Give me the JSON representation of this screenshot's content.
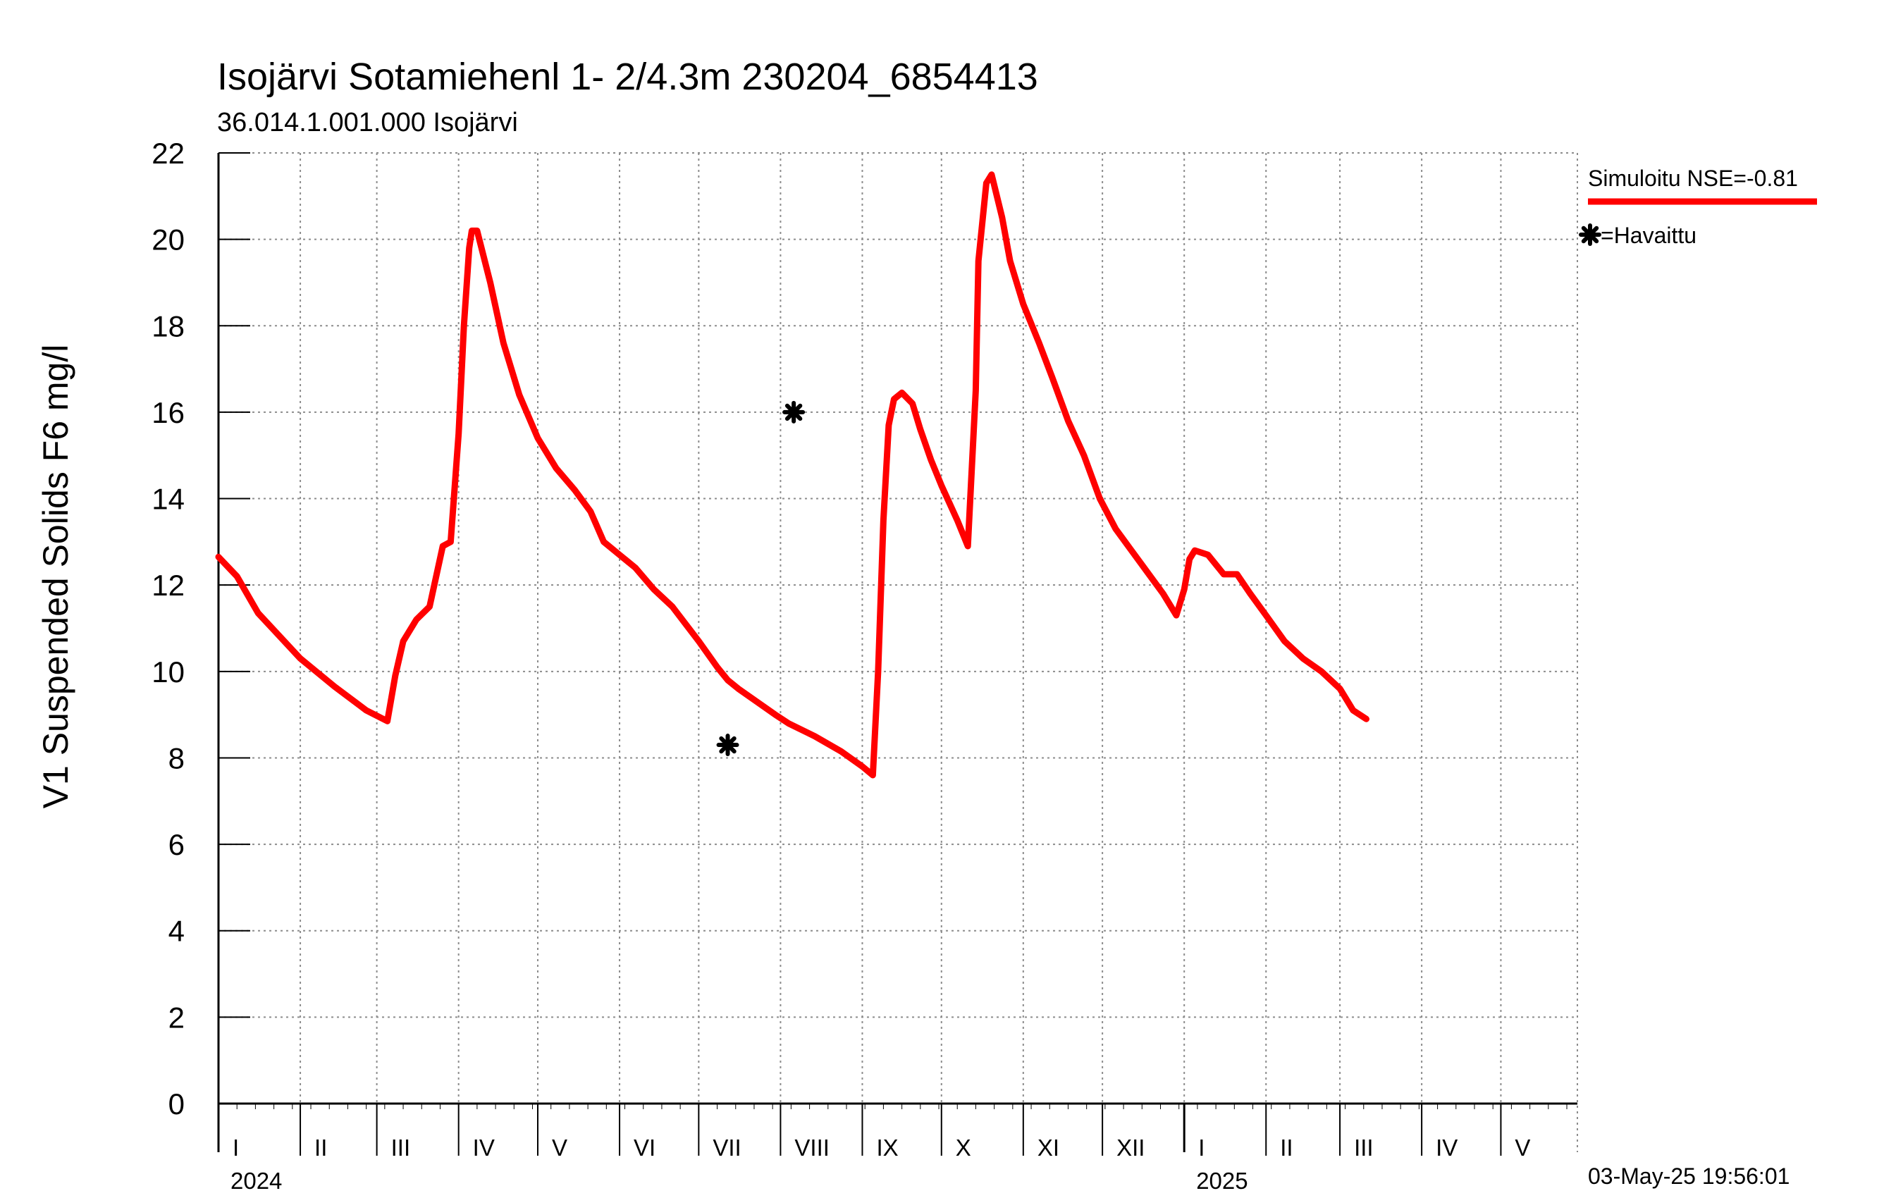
{
  "chart_data": {
    "type": "line",
    "title": "Isojärvi Sotamiehenl 1- 2/4.3m  230204_6854413",
    "subtitle": "36.014.1.001.000 Isojärvi",
    "ylabel": "V1 Suspended Solids F6 mg/l",
    "xlabel": "",
    "ylim": [
      0,
      22
    ],
    "yticks": [
      "0",
      "2",
      "4",
      "6",
      "8",
      "10",
      "12",
      "14",
      "16",
      "18",
      "20",
      "22"
    ],
    "x_unit": "day index from 1 Jan 2024",
    "xlim": [
      0,
      515
    ],
    "grid": true,
    "month_labels": [
      {
        "label": "I",
        "day": 0
      },
      {
        "label": "II",
        "day": 31
      },
      {
        "label": "III",
        "day": 60
      },
      {
        "label": "IV",
        "day": 91
      },
      {
        "label": "V",
        "day": 121
      },
      {
        "label": "VI",
        "day": 152
      },
      {
        "label": "VII",
        "day": 182
      },
      {
        "label": "VIII",
        "day": 213
      },
      {
        "label": "IX",
        "day": 244
      },
      {
        "label": "X",
        "day": 274
      },
      {
        "label": "XI",
        "day": 305
      },
      {
        "label": "XII",
        "day": 335
      },
      {
        "label": "I",
        "day": 366
      },
      {
        "label": "II",
        "day": 397
      },
      {
        "label": "III",
        "day": 425
      },
      {
        "label": "IV",
        "day": 456
      },
      {
        "label": "V",
        "day": 486
      }
    ],
    "year_labels": [
      {
        "label": "2024",
        "day": 0
      },
      {
        "label": "2025",
        "day": 366
      }
    ],
    "legend_position": "top-right",
    "series": [
      {
        "name": "Simuloitu NSE=-0.81",
        "color": "#ff0000",
        "points": [
          [
            0,
            12.65
          ],
          [
            7,
            12.2
          ],
          [
            15,
            11.35
          ],
          [
            31,
            10.3
          ],
          [
            44,
            9.65
          ],
          [
            56,
            9.1
          ],
          [
            64,
            8.85
          ],
          [
            67,
            9.9
          ],
          [
            70,
            10.7
          ],
          [
            75,
            11.2
          ],
          [
            80,
            11.5
          ],
          [
            85,
            12.9
          ],
          [
            88,
            13.0
          ],
          [
            91,
            15.5
          ],
          [
            93,
            18.0
          ],
          [
            95,
            19.8
          ],
          [
            96,
            20.2
          ],
          [
            98,
            20.2
          ],
          [
            103,
            19.0
          ],
          [
            108,
            17.6
          ],
          [
            114,
            16.4
          ],
          [
            121,
            15.4
          ],
          [
            128,
            14.7
          ],
          [
            135,
            14.2
          ],
          [
            141,
            13.7
          ],
          [
            146,
            13.0
          ],
          [
            152,
            12.7
          ],
          [
            158,
            12.4
          ],
          [
            165,
            11.9
          ],
          [
            172,
            11.5
          ],
          [
            182,
            10.7
          ],
          [
            189,
            10.1
          ],
          [
            193,
            9.8
          ],
          [
            197,
            9.6
          ],
          [
            204,
            9.3
          ],
          [
            211,
            9.0
          ],
          [
            216,
            8.8
          ],
          [
            226,
            8.5
          ],
          [
            236,
            8.15
          ],
          [
            244,
            7.8
          ],
          [
            248,
            7.6
          ],
          [
            250,
            10.0
          ],
          [
            252,
            13.5
          ],
          [
            254,
            15.7
          ],
          [
            256,
            16.3
          ],
          [
            259,
            16.45
          ],
          [
            263,
            16.2
          ],
          [
            266,
            15.6
          ],
          [
            270,
            14.9
          ],
          [
            274,
            14.3
          ],
          [
            280,
            13.5
          ],
          [
            284,
            12.9
          ],
          [
            287,
            16.5
          ],
          [
            288,
            19.5
          ],
          [
            291,
            21.3
          ],
          [
            293,
            21.5
          ],
          [
            297,
            20.5
          ],
          [
            300,
            19.5
          ],
          [
            305,
            18.5
          ],
          [
            311,
            17.6
          ],
          [
            316,
            16.8
          ],
          [
            322,
            15.8
          ],
          [
            328,
            15.0
          ],
          [
            334,
            14.0
          ],
          [
            340,
            13.3
          ],
          [
            346,
            12.8
          ],
          [
            352,
            12.3
          ],
          [
            358,
            11.8
          ],
          [
            363,
            11.3
          ],
          [
            366,
            11.9
          ],
          [
            368,
            12.6
          ],
          [
            370,
            12.8
          ],
          [
            375,
            12.7
          ],
          [
            381,
            12.25
          ],
          [
            386,
            12.25
          ],
          [
            391,
            11.8
          ],
          [
            397,
            11.3
          ],
          [
            404,
            10.7
          ],
          [
            411,
            10.3
          ],
          [
            418,
            10.0
          ],
          [
            425,
            9.6
          ],
          [
            430,
            9.1
          ],
          [
            435,
            8.9
          ]
        ]
      },
      {
        "name": "=Havaittu",
        "color": "#000000",
        "marker": "asterisk",
        "points": [
          [
            193,
            8.3
          ],
          [
            218,
            16.0
          ]
        ]
      }
    ]
  },
  "timestamp": "03-May-25 19:56:01"
}
